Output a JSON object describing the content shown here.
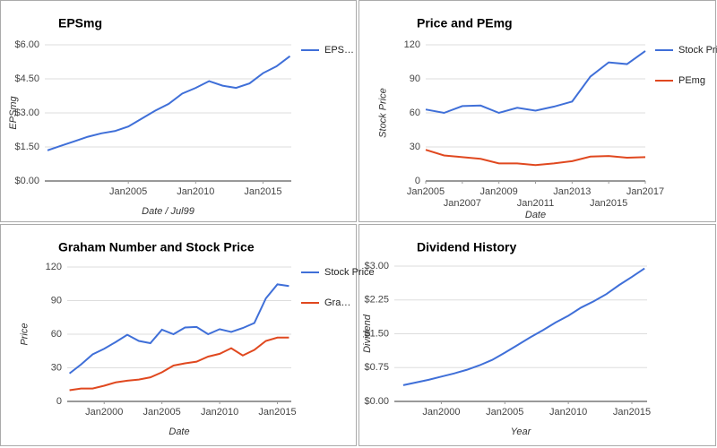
{
  "chart_data": [
    {
      "type": "line",
      "title": "EPSmg",
      "x_label": "Date / Jul99",
      "y_label": "EPSmg",
      "legend": "right",
      "x": [
        1999,
        2000,
        2001,
        2002,
        2003,
        2004,
        2005,
        2006,
        2007,
        2008,
        2009,
        2010,
        2011,
        2012,
        2013,
        2014,
        2015,
        2016,
        2017
      ],
      "series": [
        {
          "name": "EPS…",
          "color": "#3f6fd8",
          "values": [
            1.35,
            1.55,
            1.75,
            1.95,
            2.1,
            2.2,
            2.4,
            2.75,
            3.1,
            3.4,
            3.85,
            4.1,
            4.4,
            4.2,
            4.1,
            4.3,
            4.75,
            5.05,
            5.5
          ]
        }
      ],
      "xlim": [
        1998.8,
        2017.1
      ],
      "ylim": [
        0,
        6
      ],
      "xticks": [
        {
          "value": 2005,
          "label": "Jan2005"
        },
        {
          "value": 2010,
          "label": "Jan2010"
        },
        {
          "value": 2015,
          "label": "Jan2015"
        }
      ],
      "yticks": [
        {
          "value": 0,
          "label": "$0.00"
        },
        {
          "value": 1.5,
          "label": "$1.50"
        },
        {
          "value": 3,
          "label": "$3.00"
        },
        {
          "value": 4.5,
          "label": "$4.50"
        },
        {
          "value": 6,
          "label": "$6.00"
        }
      ],
      "grid": true
    },
    {
      "type": "line",
      "title": "Price and PEmg",
      "x_label": "Date",
      "y_label": "Stock Price",
      "legend": "right",
      "x": [
        2005,
        2006,
        2007,
        2008,
        2009,
        2010,
        2011,
        2012,
        2013,
        2014,
        2015,
        2016,
        2017
      ],
      "series": [
        {
          "name": "Stock Price",
          "color": "#3f6fd8",
          "values": [
            63,
            60,
            66,
            66.5,
            60,
            64.5,
            62,
            65.5,
            70,
            92,
            104.5,
            103,
            114.5
          ]
        },
        {
          "name": "PEmg",
          "color": "#e0481f",
          "values": [
            27.5,
            22.5,
            21,
            19.5,
            15.5,
            15.5,
            14,
            15.5,
            17.5,
            21.5,
            22,
            20.5,
            21
          ]
        }
      ],
      "xlim": [
        2005,
        2017
      ],
      "ylim": [
        0,
        120
      ],
      "xticks": [
        {
          "value": 2005,
          "label": "Jan2005"
        },
        {
          "value": 2007,
          "label": "Jan2007"
        },
        {
          "value": 2009,
          "label": "Jan2009"
        },
        {
          "value": 2011,
          "label": "Jan2011"
        },
        {
          "value": 2013,
          "label": "Jan2013"
        },
        {
          "value": 2015,
          "label": "Jan2015"
        },
        {
          "value": 2017,
          "label": "Jan2017"
        }
      ],
      "yticks": [
        0,
        30,
        60,
        90,
        120
      ],
      "grid": true
    },
    {
      "type": "line",
      "title": "Graham Number and Stock Price",
      "x_label": "Date",
      "y_label": "Price",
      "legend": "right",
      "x": [
        1997,
        1998,
        1999,
        2000,
        2001,
        2002,
        2003,
        2004,
        2005,
        2006,
        2007,
        2008,
        2009,
        2010,
        2011,
        2012,
        2013,
        2014,
        2015,
        2016
      ],
      "series": [
        {
          "name": "Stock Price",
          "color": "#3f6fd8",
          "values": [
            25,
            33,
            42,
            47,
            53,
            59.5,
            54,
            52,
            64,
            60,
            66,
            66.5,
            60,
            64.5,
            62,
            65.5,
            70,
            92,
            104.5,
            103
          ]
        },
        {
          "name": "Gra…",
          "color": "#e0481f",
          "values": [
            10,
            11.5,
            11.5,
            14,
            17,
            18.5,
            19.5,
            21.5,
            26,
            32,
            34,
            35.5,
            40,
            42.5,
            47.5,
            41,
            46,
            54,
            57,
            57
          ]
        }
      ],
      "xlim": [
        1996.8,
        2016.2
      ],
      "ylim": [
        0,
        120
      ],
      "xticks": [
        {
          "value": 2000,
          "label": "Jan2000"
        },
        {
          "value": 2005,
          "label": "Jan2005"
        },
        {
          "value": 2010,
          "label": "Jan2010"
        },
        {
          "value": 2015,
          "label": "Jan2015"
        }
      ],
      "yticks": [
        0,
        30,
        60,
        90,
        120
      ],
      "grid": true
    },
    {
      "type": "line",
      "title": "Dividend History",
      "x_label": "Year",
      "y_label": "Dividend",
      "legend": "none",
      "x": [
        1997,
        1998,
        1999,
        2000,
        2001,
        2002,
        2003,
        2004,
        2005,
        2006,
        2007,
        2008,
        2009,
        2010,
        2011,
        2012,
        2013,
        2014,
        2015,
        2016
      ],
      "series": [
        {
          "color": "#3f6fd8",
          "values": [
            0.36,
            0.42,
            0.48,
            0.55,
            0.62,
            0.7,
            0.8,
            0.92,
            1.08,
            1.25,
            1.42,
            1.58,
            1.75,
            1.9,
            2.08,
            2.22,
            2.38,
            2.58,
            2.76,
            2.95
          ]
        }
      ],
      "xlim": [
        1996.3,
        2016.2
      ],
      "ylim": [
        0,
        3
      ],
      "xticks": [
        {
          "value": 2000,
          "label": "Jan2000"
        },
        {
          "value": 2005,
          "label": "Jan2005"
        },
        {
          "value": 2010,
          "label": "Jan2010"
        },
        {
          "value": 2015,
          "label": "Jan2015"
        }
      ],
      "yticks": [
        {
          "value": 0,
          "label": "$0.00"
        },
        {
          "value": 0.75,
          "label": "$0.75"
        },
        {
          "value": 1.5,
          "label": "$1.50"
        },
        {
          "value": 2.25,
          "label": "$2.25"
        },
        {
          "value": 3,
          "label": "$3.00"
        }
      ],
      "grid": true
    }
  ]
}
